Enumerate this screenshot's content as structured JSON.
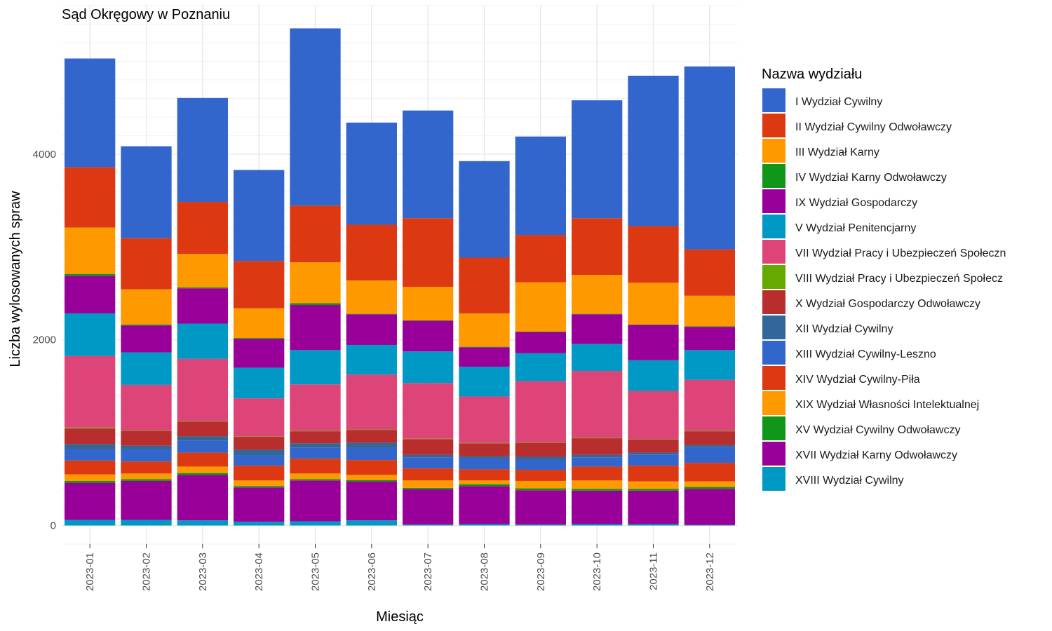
{
  "chart_data": {
    "type": "bar",
    "stacked": true,
    "title": "Sąd Okręgowy w Poznaniu",
    "xlabel": "Miesiąc",
    "ylabel": "Liczba wylosowanych spraw",
    "ylim": [
      -200,
      5600
    ],
    "yticks": [
      0,
      2000,
      4000
    ],
    "grid": true,
    "legend_title": "Nazwa wydziału",
    "legend_position": "right",
    "categories": [
      "2023-01",
      "2023-02",
      "2023-03",
      "2023-04",
      "2023-05",
      "2023-06",
      "2023-07",
      "2023-08",
      "2023-09",
      "2023-10",
      "2023-11",
      "2023-12"
    ],
    "series": [
      {
        "name": "XVIII Wydział Cywilny",
        "color": "#0099C6",
        "values": [
          60,
          60,
          55,
          40,
          45,
          55,
          10,
          15,
          10,
          15,
          15,
          5
        ]
      },
      {
        "name": "XVII Wydział Karny Odwoławczy",
        "color": "#990099",
        "values": [
          400,
          420,
          490,
          370,
          440,
          420,
          380,
          410,
          370,
          360,
          360,
          390
        ]
      },
      {
        "name": "XV Wydział Cywilny Odwoławczy",
        "color": "#109618",
        "values": [
          20,
          20,
          20,
          15,
          15,
          15,
          15,
          20,
          20,
          20,
          20,
          20
        ]
      },
      {
        "name": "XIX Wydział Własności Intelektualnej",
        "color": "#FF9900",
        "values": [
          70,
          60,
          70,
          60,
          60,
          55,
          80,
          40,
          80,
          90,
          80,
          60
        ]
      },
      {
        "name": "XIV Wydział Cywilny-Piła",
        "color": "#DC3912",
        "values": [
          150,
          130,
          150,
          160,
          160,
          160,
          130,
          120,
          120,
          150,
          170,
          200
        ]
      },
      {
        "name": "XIII Wydział Cywilny-Leszno",
        "color": "#3366CC",
        "values": [
          120,
          130,
          130,
          110,
          120,
          130,
          120,
          120,
          110,
          100,
          120,
          170
        ]
      },
      {
        "name": "XII Wydział Cywilny",
        "color": "#336699",
        "values": [
          55,
          40,
          45,
          60,
          45,
          55,
          25,
          20,
          30,
          25,
          20,
          20
        ]
      },
      {
        "name": "X Wydział Gospodarczy Odwoławczy",
        "color": "#B82E2E",
        "values": [
          170,
          160,
          160,
          140,
          130,
          140,
          170,
          140,
          150,
          180,
          140,
          150
        ]
      },
      {
        "name": "VIII Wydział Pracy i Ubezpieczeń Społecz",
        "color": "#66AA00",
        "values": [
          10,
          5,
          5,
          5,
          5,
          5,
          5,
          5,
          5,
          5,
          5,
          5
        ]
      },
      {
        "name": "VII Wydział Pracy i Ubezpieczeń Społeczn",
        "color": "#DD4477",
        "values": [
          770,
          490,
          670,
          410,
          500,
          590,
          600,
          500,
          660,
          720,
          520,
          550
        ]
      },
      {
        "name": "V Wydział Penitencjarny",
        "color": "#0099C6",
        "values": [
          460,
          350,
          380,
          330,
          370,
          320,
          340,
          320,
          300,
          290,
          330,
          320
        ]
      },
      {
        "name": "IX Wydział Gospodarczy",
        "color": "#990099",
        "values": [
          405,
          290,
          380,
          310,
          485,
          330,
          330,
          210,
          230,
          320,
          380,
          250
        ]
      },
      {
        "name": "IV Wydział Karny Odwoławczy",
        "color": "#109618",
        "values": [
          20,
          10,
          10,
          10,
          20,
          5,
          5,
          5,
          5,
          5,
          5,
          5
        ]
      },
      {
        "name": "III Wydział Karny",
        "color": "#FF9900",
        "values": [
          500,
          380,
          360,
          320,
          440,
          360,
          360,
          360,
          530,
          420,
          450,
          330
        ]
      },
      {
        "name": "II Wydział Cywilny Odwoławczy",
        "color": "#DC3912",
        "values": [
          650,
          550,
          560,
          510,
          610,
          600,
          740,
          600,
          510,
          610,
          610,
          500
        ]
      },
      {
        "name": "I Wydział Cywilny",
        "color": "#3366CC",
        "values": [
          1170,
          990,
          1120,
          980,
          1910,
          1100,
          1160,
          1040,
          1060,
          1270,
          1620,
          1970
        ]
      }
    ],
    "legend_order": [
      "I Wydział Cywilny",
      "II Wydział Cywilny Odwoławczy",
      "III Wydział Karny",
      "IV Wydział Karny Odwoławczy",
      "IX Wydział Gospodarczy",
      "V Wydział Penitencjarny",
      "VII Wydział Pracy i Ubezpieczeń Społeczn",
      "VIII Wydział Pracy i Ubezpieczeń Społecz",
      "X Wydział Gospodarczy Odwoławczy",
      "XII Wydział Cywilny",
      "XIII Wydział Cywilny-Leszno",
      "XIV Wydział Cywilny-Piła",
      "XIX Wydział Własności Intelektualnej",
      "XV Wydział Cywilny Odwoławczy",
      "XVII Wydział Karny Odwoławczy",
      "XVIII Wydział Cywilny"
    ]
  }
}
